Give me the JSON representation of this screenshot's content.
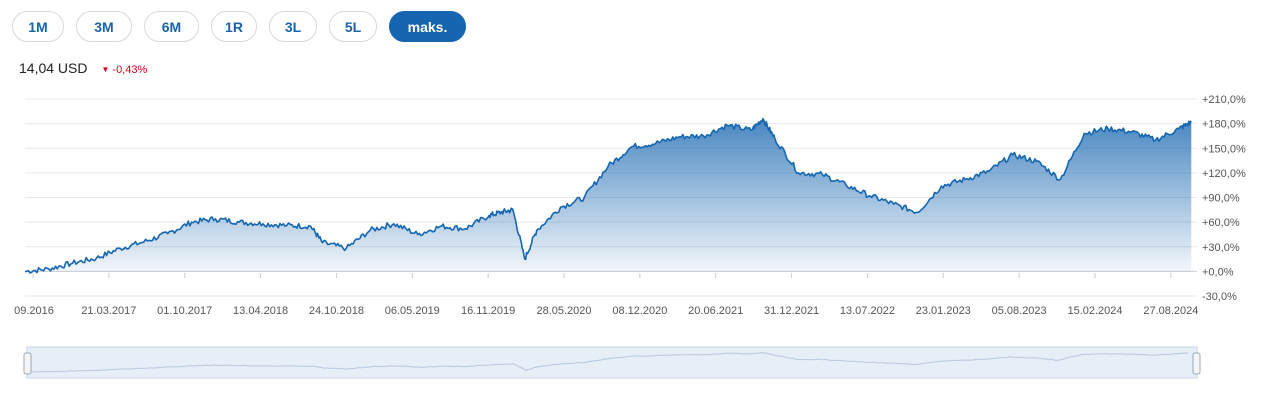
{
  "range_buttons": [
    {
      "label": "1M",
      "active": false
    },
    {
      "label": "3M",
      "active": false
    },
    {
      "label": "6M",
      "active": false
    },
    {
      "label": "1R",
      "active": false
    },
    {
      "label": "3L",
      "active": false
    },
    {
      "label": "5L",
      "active": false
    },
    {
      "label": "maks.",
      "active": true
    }
  ],
  "quote": {
    "price": "14,04 USD",
    "change": "-0,43%",
    "change_direction": "down"
  },
  "colors": {
    "accent": "#1565b0",
    "line": "#1565b0",
    "negative": "#d0021b"
  },
  "chart_data": {
    "type": "area",
    "title": "",
    "xlabel": "",
    "ylabel": "",
    "y_unit": "%",
    "ylim": [
      -30,
      210
    ],
    "y_ticks": [
      "+210,0%",
      "+180,0%",
      "+150,0%",
      "+120,0%",
      "+90,0%",
      "+60,0%",
      "+30,0%",
      "+0,0%",
      "-30,0%"
    ],
    "y_tick_values": [
      210,
      180,
      150,
      120,
      90,
      60,
      30,
      0,
      -30
    ],
    "x_ticks": [
      "09.2016",
      "21.03.2017",
      "01.10.2017",
      "13.04.2018",
      "24.10.2018",
      "06.05.2019",
      "16.11.2019",
      "28.05.2020",
      "08.12.2020",
      "20.06.2021",
      "31.12.2021",
      "13.07.2022",
      "23.01.2023",
      "05.08.2023",
      "15.02.2024",
      "27.08.2024"
    ],
    "grid": true,
    "series": [
      {
        "name": "",
        "x": [
          "2016-09",
          "2016-11",
          "2017-01",
          "2017-03",
          "2017-05",
          "2017-07",
          "2017-09",
          "2017-11",
          "2018-01",
          "2018-03",
          "2018-05",
          "2018-07",
          "2018-09",
          "2018-10",
          "2018-12",
          "2019-02",
          "2019-04",
          "2019-06",
          "2019-08",
          "2019-10",
          "2019-12",
          "2020-01",
          "2020-02",
          "2020-03",
          "2020-04",
          "2020-06",
          "2020-08",
          "2020-10",
          "2020-12",
          "2021-02",
          "2021-04",
          "2021-06",
          "2021-08",
          "2021-10",
          "2021-11",
          "2021-12",
          "2022-02",
          "2022-04",
          "2022-06",
          "2022-08",
          "2022-10",
          "2022-12",
          "2023-02",
          "2023-04",
          "2023-06",
          "2023-08",
          "2023-10",
          "2023-12",
          "2024-02",
          "2024-04",
          "2024-06",
          "2024-08",
          "2024-10",
          "2024-11"
        ],
        "values": [
          0,
          3,
          10,
          16,
          28,
          36,
          46,
          60,
          64,
          60,
          58,
          56,
          55,
          35,
          28,
          50,
          58,
          45,
          55,
          52,
          68,
          72,
          75,
          15,
          50,
          78,
          90,
          128,
          152,
          156,
          164,
          165,
          178,
          172,
          186,
          162,
          120,
          118,
          105,
          92,
          82,
          72,
          104,
          112,
          122,
          142,
          134,
          112,
          168,
          174,
          170,
          160,
          174,
          182
        ]
      }
    ],
    "navigator": true
  }
}
